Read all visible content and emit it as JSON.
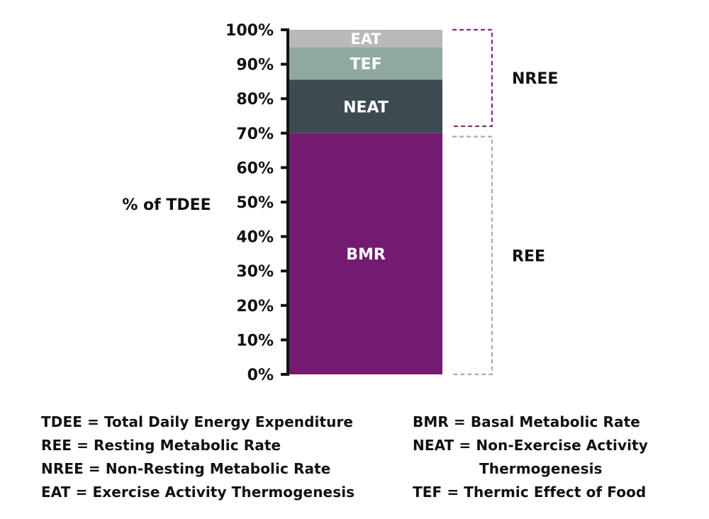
{
  "chart_data": {
    "type": "bar",
    "stacked": true,
    "ylabel": "% of TDEE",
    "ylim": [
      0,
      100
    ],
    "yticks": [
      {
        "value": 0,
        "label": "0%"
      },
      {
        "value": 10,
        "label": "10%"
      },
      {
        "value": 20,
        "label": "20%"
      },
      {
        "value": 30,
        "label": "30%"
      },
      {
        "value": 40,
        "label": "40%"
      },
      {
        "value": 50,
        "label": "50%"
      },
      {
        "value": 60,
        "label": "60%"
      },
      {
        "value": 70,
        "label": "70%"
      },
      {
        "value": 80,
        "label": "80%"
      },
      {
        "value": 90,
        "label": "90%"
      },
      {
        "value": 100,
        "label": "100%"
      }
    ],
    "segments": [
      {
        "label": "BMR",
        "start": 0,
        "end": 70,
        "color": "#741a71",
        "text_color": "#ffffff"
      },
      {
        "label": "NEAT",
        "start": 70,
        "end": 85.5,
        "color": "#3e4a52",
        "text_color": "#ffffff"
      },
      {
        "label": "TEF",
        "start": 85.5,
        "end": 95,
        "color": "#8fa9a1",
        "text_color": "#ffffff"
      },
      {
        "label": "EAT",
        "start": 95,
        "end": 100,
        "color": "#b9b9b9",
        "text_color": "#ffffff"
      }
    ],
    "brackets": [
      {
        "label": "NREE",
        "start": 72,
        "end": 100,
        "color": "#7b2f7e"
      },
      {
        "label": "REE",
        "start": 0,
        "end": 69,
        "color": "#9bb5ab"
      }
    ],
    "grid": false,
    "legend": {
      "left": [
        "TDEE = Total Daily Energy Expenditure",
        "REE = Resting Metabolic Rate",
        "NREE = Non-Resting Metabolic Rate",
        "EAT = Exercise Activity Thermogenesis"
      ],
      "right": [
        "BMR = Basal Metabolic Rate",
        "NEAT = Non-Exercise Activity",
        "Thermogenesis",
        "TEF = Thermic Effect of Food"
      ]
    }
  }
}
